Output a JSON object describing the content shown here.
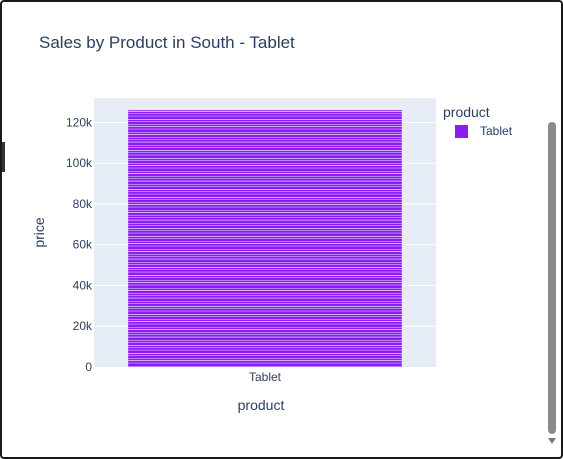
{
  "chart_data": {
    "type": "bar",
    "title": "Sales by Product in South - Tablet",
    "xlabel": "product",
    "ylabel": "price",
    "categories": [
      "Tablet"
    ],
    "ylim": [
      0,
      132000
    ],
    "yticks": [
      0,
      20000,
      40000,
      60000,
      80000,
      100000,
      120000
    ],
    "ytick_labels": [
      "0",
      "20k",
      "40k",
      "60k",
      "80k",
      "100k",
      "120k"
    ],
    "series": [
      {
        "name": "Tablet",
        "values": [
          126000
        ],
        "color": "#8b1cf4"
      }
    ],
    "legend": {
      "title": "product",
      "position": "top-right"
    },
    "grid": true,
    "plot_bg": "#e5ecf6",
    "note_stacked_segments": "bar composed of many thin stacked segments"
  },
  "scrollbar": {
    "thumb_color": "#8a8a8a"
  }
}
